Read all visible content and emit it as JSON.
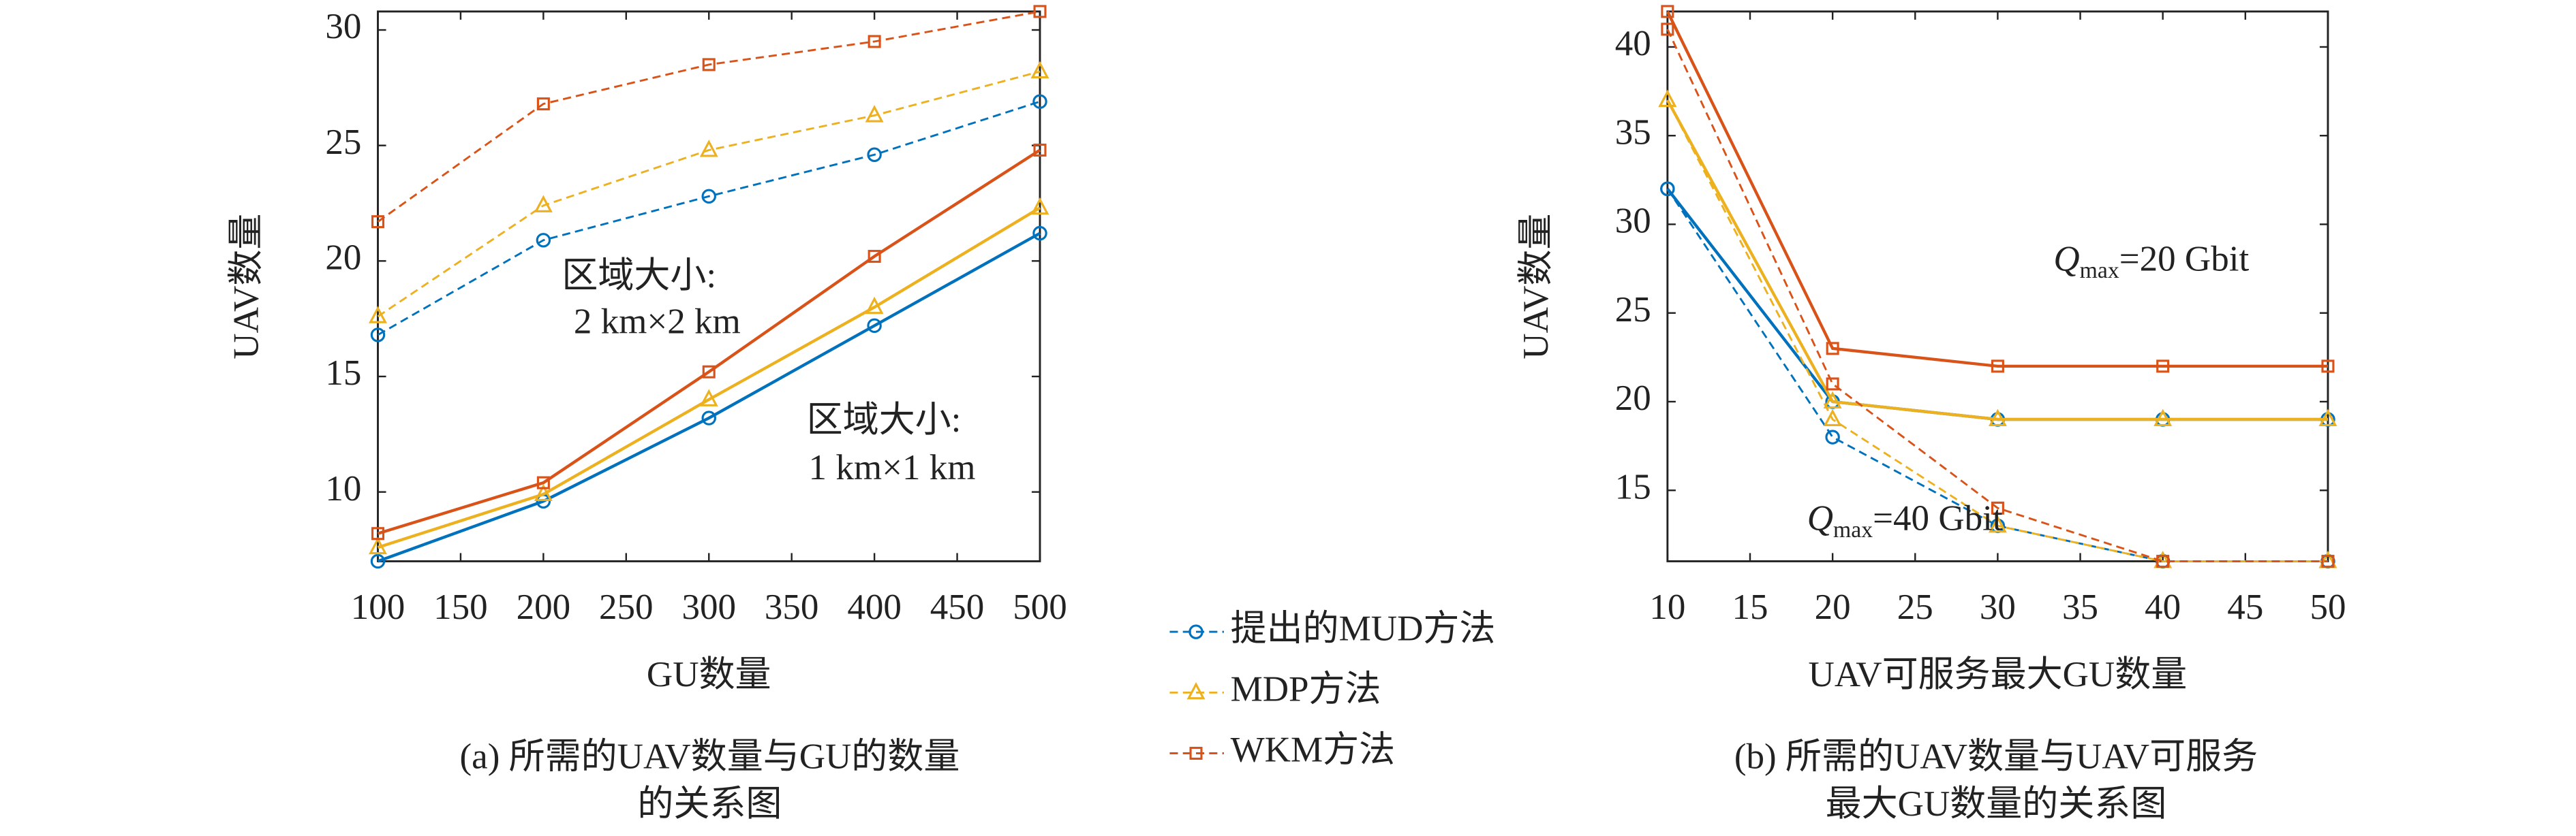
{
  "chart_data": [
    {
      "type": "line",
      "x": [
        100,
        200,
        300,
        400,
        500
      ],
      "xlim": [
        100,
        500
      ],
      "xticks": [
        100,
        150,
        200,
        250,
        300,
        350,
        400,
        450,
        500
      ],
      "ylim": [
        7,
        30.8
      ],
      "yticks": [
        10,
        15,
        20,
        25,
        30
      ],
      "ylabel": "UAV数量",
      "xlabel": "GU数量",
      "caption": [
        "(a) 所需的UAV数量与GU的数量",
        "的关系图"
      ],
      "series": [
        {
          "name": "提出的MUD方法",
          "color": "#0072bd",
          "marker": "circle",
          "values": [
            7.0,
            9.6,
            13.2,
            17.2,
            21.2
          ],
          "values_dashed": [
            16.8,
            20.9,
            22.8,
            24.6,
            26.9
          ]
        },
        {
          "name": "MDP方法",
          "color": "#edb120",
          "marker": "triangle",
          "values": [
            7.6,
            9.9,
            14.0,
            18.0,
            22.3
          ],
          "values_dashed": [
            17.6,
            22.4,
            24.8,
            26.3,
            28.2
          ]
        },
        {
          "name": "WKM方法",
          "color": "#d95319",
          "marker": "square",
          "values": [
            8.2,
            10.4,
            15.2,
            20.2,
            24.8
          ],
          "values_dashed": [
            21.7,
            26.8,
            28.5,
            29.5,
            30.8
          ]
        }
      ],
      "annotations": [
        {
          "lines": [
            "区域大小:",
            "2 km×2 km"
          ]
        },
        {
          "lines": [
            "区域大小:",
            "1 km×1 km"
          ]
        }
      ]
    },
    {
      "type": "line",
      "x": [
        10,
        20,
        30,
        40,
        50
      ],
      "xlim": [
        10,
        50
      ],
      "xticks": [
        10,
        15,
        20,
        25,
        30,
        35,
        40,
        45,
        50
      ],
      "ylim": [
        11,
        42
      ],
      "yticks": [
        15,
        20,
        25,
        30,
        35,
        40
      ],
      "ylabel": "UAV数量",
      "xlabel": "UAV可服务最大GU数量",
      "caption": [
        "(b) 所需的UAV数量与UAV可服务",
        "最大GU数量的关系图"
      ],
      "series": [
        {
          "color": "#0072bd",
          "marker": "circle",
          "values": [
            32,
            20,
            19,
            19,
            19
          ],
          "values_dashed": [
            32,
            18,
            13,
            11,
            11
          ]
        },
        {
          "color": "#edb120",
          "marker": "triangle",
          "values": [
            37,
            20,
            19,
            19,
            19
          ],
          "values_dashed": [
            37,
            19,
            13,
            11,
            11
          ]
        },
        {
          "color": "#d95319",
          "marker": "square",
          "values": [
            42,
            23,
            22,
            22,
            22
          ],
          "values_dashed": [
            41,
            21,
            14,
            11,
            11
          ]
        }
      ],
      "annotations": [
        {
          "q": "Q",
          "sub": "max",
          "text": "=20 Gbit"
        },
        {
          "q": "Q",
          "sub": "max",
          "text": "=40 Gbit"
        }
      ]
    }
  ]
}
